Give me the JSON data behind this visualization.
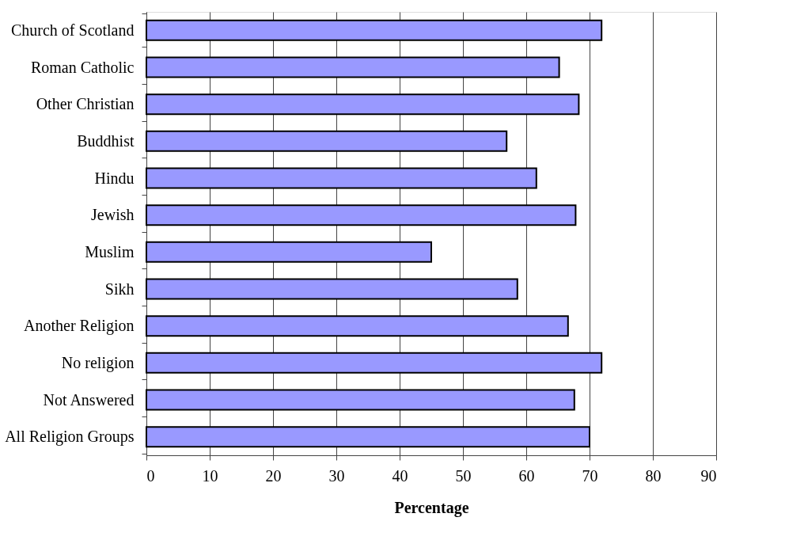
{
  "chart_data": {
    "type": "bar",
    "orientation": "horizontal",
    "xlabel": "Percentage",
    "categories": [
      "Church of Scotland",
      "Roman Catholic",
      "Other Christian",
      "Buddhist",
      "Hindu",
      "Jewish",
      "Muslim",
      "Sikh",
      "Another Religion",
      "No religion",
      "Not Answered",
      "All Religion Groups"
    ],
    "values": [
      71.9,
      65.2,
      68.3,
      56.9,
      61.6,
      67.8,
      45.0,
      58.6,
      66.6,
      71.9,
      67.6,
      70.0
    ],
    "color": "#9999ff",
    "xlim": [
      0,
      90
    ],
    "xticks": [
      0,
      10,
      20,
      30,
      40,
      50,
      60,
      70,
      80,
      90
    ],
    "grid": "x"
  }
}
